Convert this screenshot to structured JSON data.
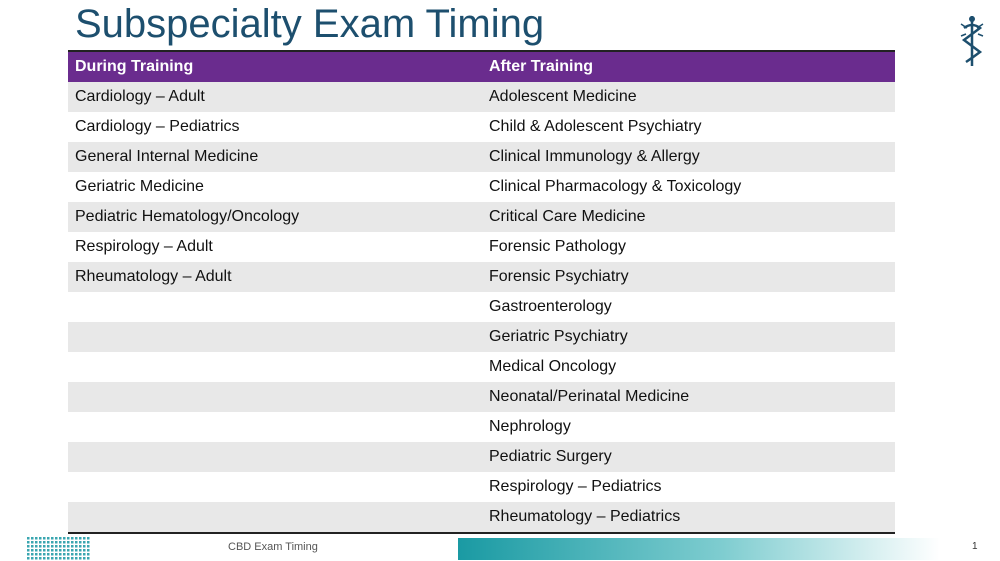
{
  "title": "Subspecialty Exam Timing",
  "table": {
    "columns": [
      {
        "header": "During Training",
        "items": [
          "Cardiology – Adult",
          "Cardiology – Pediatrics",
          "General Internal Medicine",
          "Geriatric Medicine",
          "Pediatric Hematology/Oncology",
          "Respirology – Adult",
          "Rheumatology – Adult"
        ]
      },
      {
        "header": "After Training",
        "items": [
          "Adolescent Medicine",
          "Child & Adolescent Psychiatry",
          "Clinical Immunology & Allergy",
          "Clinical Pharmacology & Toxicology",
          "Critical Care Medicine",
          "Forensic Pathology",
          "Forensic Psychiatry",
          "Gastroenterology",
          "Geriatric Psychiatry",
          "Medical Oncology",
          "Neonatal/Perinatal Medicine",
          "Nephrology",
          "Pediatric Surgery",
          "Respirology – Pediatrics",
          "Rheumatology – Pediatrics"
        ]
      }
    ]
  },
  "footer": {
    "text": "CBD Exam Timing",
    "page": 1
  }
}
